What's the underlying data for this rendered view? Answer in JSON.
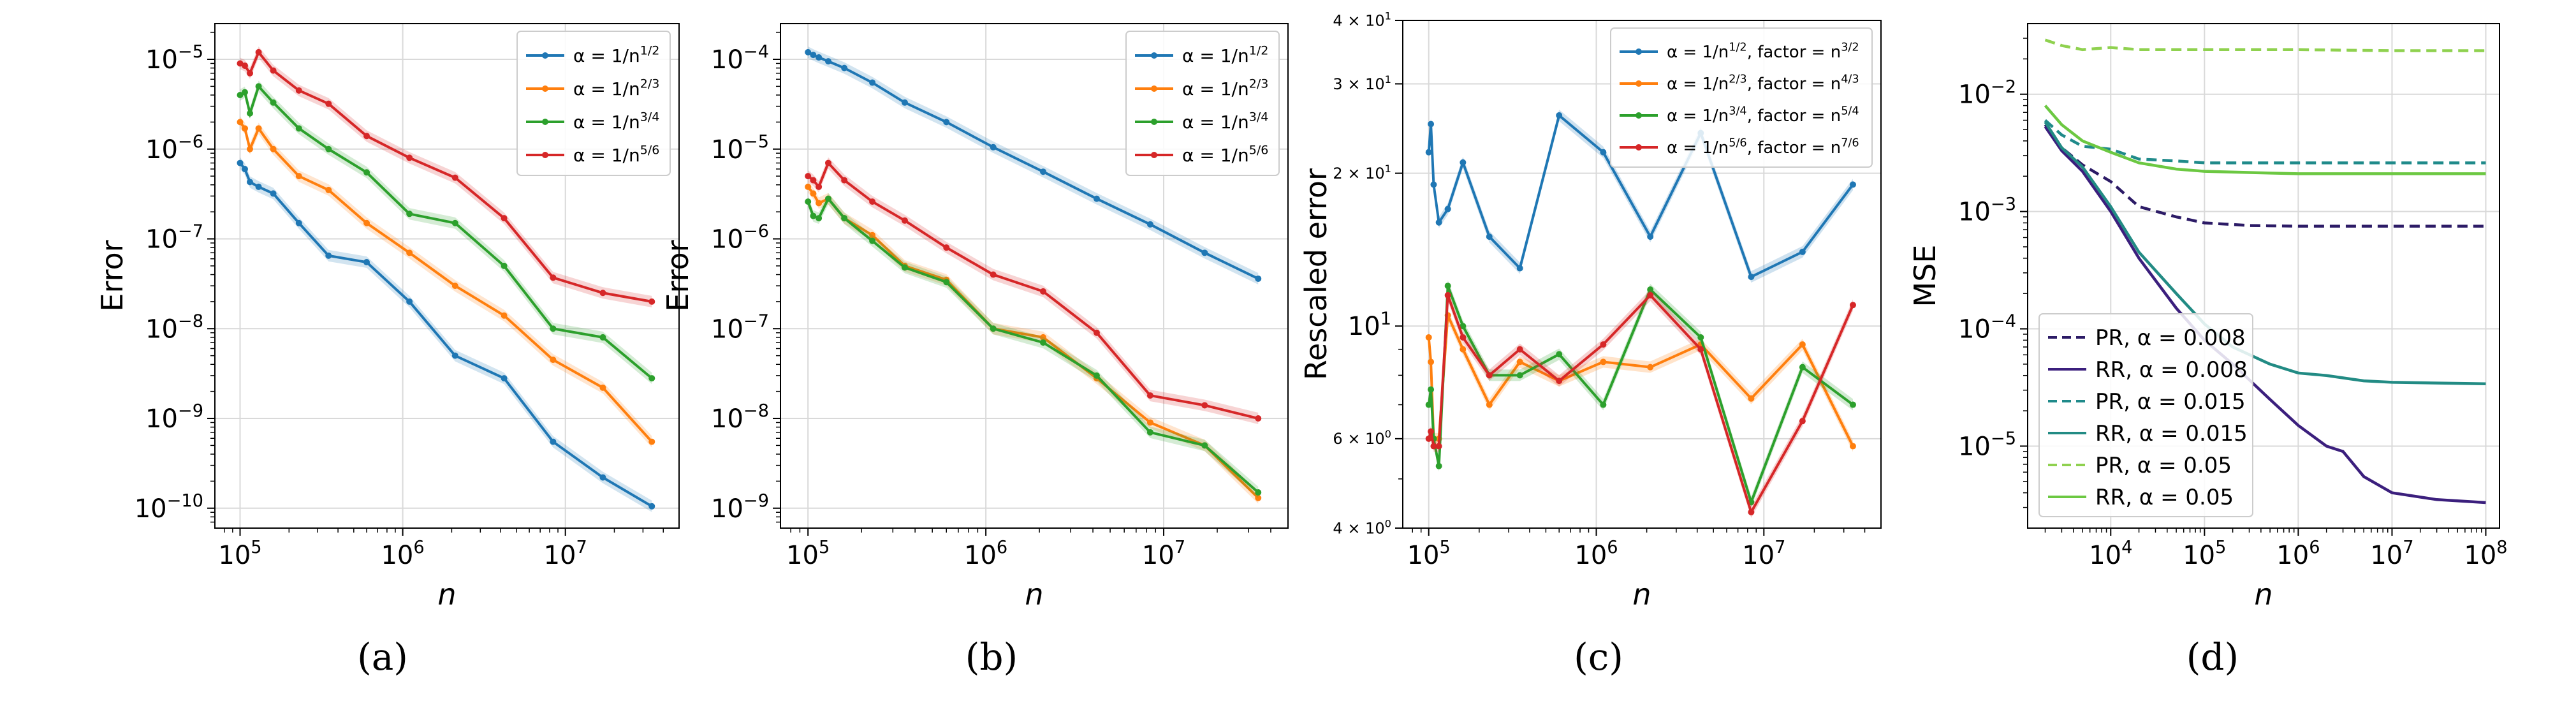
{
  "chart_data": [
    {
      "type": "line",
      "caption": "(a)",
      "xlabel": "n",
      "ylabel": "Error",
      "xscale": "log",
      "yscale": "log",
      "xlim": [
        70000,
        50000000
      ],
      "ylim": [
        6e-11,
        2.5e-05
      ],
      "xticks": [
        {
          "value": 100000,
          "base": "10",
          "exp": "5"
        },
        {
          "value": 1000000,
          "base": "10",
          "exp": "6"
        },
        {
          "value": 10000000,
          "base": "10",
          "exp": "7"
        }
      ],
      "yticks": [
        {
          "value": 1e-10,
          "base": "10",
          "exp": "−10"
        },
        {
          "value": 1e-09,
          "base": "10",
          "exp": "−9"
        },
        {
          "value": 1e-08,
          "base": "10",
          "exp": "−8"
        },
        {
          "value": 1e-07,
          "base": "10",
          "exp": "−7"
        },
        {
          "value": 1e-06,
          "base": "10",
          "exp": "−6"
        },
        {
          "value": 1e-05,
          "base": "10",
          "exp": "−5"
        }
      ],
      "grid": true,
      "legend": "top-right",
      "x": [
        100000,
        107000,
        115000,
        130000,
        160000,
        230000,
        350000,
        600000,
        1100000,
        2100000,
        4200000,
        8400000,
        17000000,
        34000000
      ],
      "series": [
        {
          "name": "α = 1/n^{1/2}",
          "label_main": "α = 1/n",
          "label_sup": "1/2",
          "color": "#1f77b4",
          "values": [
            7e-07,
            6e-07,
            4.3e-07,
            3.8e-07,
            3.2e-07,
            1.5e-07,
            6.5e-08,
            5.5e-08,
            2e-08,
            5e-09,
            2.8e-09,
            5.5e-10,
            2.2e-10,
            1.05e-10
          ]
        },
        {
          "name": "α = 1/n^{2/3}",
          "label_main": "α = 1/n",
          "label_sup": "2/3",
          "color": "#ff7f0e",
          "values": [
            2e-06,
            1.7e-06,
            1e-06,
            1.7e-06,
            1e-06,
            5e-07,
            3.5e-07,
            1.5e-07,
            7e-08,
            3e-08,
            1.4e-08,
            4.5e-09,
            2.2e-09,
            5.5e-10
          ]
        },
        {
          "name": "α = 1/n^{3/4}",
          "label_main": "α = 1/n",
          "label_sup": "3/4",
          "color": "#2ca02c",
          "values": [
            4e-06,
            4.3e-06,
            2.5e-06,
            5e-06,
            3.3e-06,
            1.7e-06,
            1e-06,
            5.5e-07,
            1.9e-07,
            1.5e-07,
            5e-08,
            1e-08,
            8e-09,
            2.8e-09
          ]
        },
        {
          "name": "α = 1/n^{5/6}",
          "label_main": "α = 1/n",
          "label_sup": "5/6",
          "color": "#d62728",
          "values": [
            9e-06,
            8.5e-06,
            7e-06,
            1.2e-05,
            7.5e-06,
            4.5e-06,
            3.2e-06,
            1.4e-06,
            8e-07,
            4.8e-07,
            1.7e-07,
            3.7e-08,
            2.5e-08,
            2e-08
          ]
        }
      ]
    },
    {
      "type": "line",
      "caption": "(b)",
      "xlabel": "n",
      "ylabel": "Error",
      "xscale": "log",
      "yscale": "log",
      "xlim": [
        70000,
        50000000
      ],
      "ylim": [
        6e-10,
        0.00025
      ],
      "xticks": [
        {
          "value": 100000,
          "base": "10",
          "exp": "5"
        },
        {
          "value": 1000000,
          "base": "10",
          "exp": "6"
        },
        {
          "value": 10000000,
          "base": "10",
          "exp": "7"
        }
      ],
      "yticks": [
        {
          "value": 1e-09,
          "base": "10",
          "exp": "−9"
        },
        {
          "value": 1e-08,
          "base": "10",
          "exp": "−8"
        },
        {
          "value": 1e-07,
          "base": "10",
          "exp": "−7"
        },
        {
          "value": 1e-06,
          "base": "10",
          "exp": "−6"
        },
        {
          "value": 1e-05,
          "base": "10",
          "exp": "−5"
        },
        {
          "value": 0.0001,
          "base": "10",
          "exp": "−4"
        }
      ],
      "grid": true,
      "legend": "top-right",
      "x": [
        100000,
        107000,
        115000,
        130000,
        160000,
        230000,
        350000,
        600000,
        1100000,
        2100000,
        4200000,
        8400000,
        17000000,
        34000000
      ],
      "series": [
        {
          "name": "α = 1/n^{1/2}",
          "label_main": "α = 1/n",
          "label_sup": "1/2",
          "color": "#1f77b4",
          "values": [
            0.00012,
            0.000112,
            0.000105,
            9.5e-05,
            8e-05,
            5.5e-05,
            3.3e-05,
            2e-05,
            1.05e-05,
            5.6e-06,
            2.8e-06,
            1.45e-06,
            7e-07,
            3.6e-07
          ]
        },
        {
          "name": "α = 1/n^{2/3}",
          "label_main": "α = 1/n",
          "label_sup": "2/3",
          "color": "#ff7f0e",
          "values": [
            3.8e-06,
            3.2e-06,
            2.5e-06,
            2.8e-06,
            1.7e-06,
            1.1e-06,
            5e-07,
            3.5e-07,
            1e-07,
            8e-08,
            2.8e-08,
            9e-09,
            5e-09,
            1.3e-09
          ]
        },
        {
          "name": "α = 1/n^{3/4}",
          "label_main": "α = 1/n",
          "label_sup": "3/4",
          "color": "#2ca02c",
          "values": [
            2.6e-06,
            1.8e-06,
            1.7e-06,
            2.8e-06,
            1.7e-06,
            9.5e-07,
            4.8e-07,
            3.3e-07,
            1e-07,
            7e-08,
            3e-08,
            7e-09,
            5e-09,
            1.5e-09
          ]
        },
        {
          "name": "α = 1/n^{5/6}",
          "label_main": "α = 1/n",
          "label_sup": "5/6",
          "color": "#d62728",
          "values": [
            5e-06,
            4.5e-06,
            3.8e-06,
            7e-06,
            4.5e-06,
            2.6e-06,
            1.6e-06,
            8e-07,
            4e-07,
            2.6e-07,
            9e-08,
            1.8e-08,
            1.4e-08,
            1e-08
          ]
        }
      ]
    },
    {
      "type": "line",
      "caption": "(c)",
      "xlabel": "n",
      "ylabel": "Rescaled error",
      "xscale": "log",
      "yscale": "log",
      "xlim": [
        70000,
        50000000
      ],
      "ylim": [
        4,
        40
      ],
      "xticks": [
        {
          "value": 100000,
          "base": "10",
          "exp": "5"
        },
        {
          "value": 1000000,
          "base": "10",
          "exp": "6"
        },
        {
          "value": 10000000,
          "base": "10",
          "exp": "7"
        }
      ],
      "yticks": [
        {
          "value": 4,
          "text": "4 × 10",
          "exp": "0",
          "small": true
        },
        {
          "value": 6,
          "text": "6 × 10",
          "exp": "0",
          "small": true
        },
        {
          "value": 10,
          "base": "10",
          "exp": "1",
          "small": false
        },
        {
          "value": 20,
          "text": "2 × 10",
          "exp": "1",
          "small": true
        },
        {
          "value": 30,
          "text": "3 × 10",
          "exp": "1",
          "small": true
        },
        {
          "value": 40,
          "text": "4 × 10",
          "exp": "1",
          "small": true
        }
      ],
      "grid": true,
      "legend": "top-right",
      "x": [
        100000,
        103000,
        107000,
        115000,
        130000,
        160000,
        230000,
        350000,
        600000,
        1100000,
        2100000,
        4200000,
        8400000,
        17000000,
        34000000
      ],
      "series": [
        {
          "name": "α = 1/n^{1/2}, factor = n^{3/2}",
          "label_main": "α = 1/n",
          "label_sup": "1/2",
          "label_mid": ", factor = n",
          "label_sup2": "3/2",
          "color": "#1f77b4",
          "values": [
            22,
            25,
            19,
            16,
            17,
            21,
            15,
            13,
            26,
            22,
            15,
            24,
            12.5,
            14,
            19
          ]
        },
        {
          "name": "α = 1/n^{2/3}, factor = n^{4/3}",
          "label_main": "α = 1/n",
          "label_sup": "2/3",
          "label_mid": ", factor = n",
          "label_sup2": "4/3",
          "color": "#ff7f0e",
          "values": [
            9.5,
            8.5,
            6,
            6,
            10.5,
            9,
            7,
            8.5,
            7.8,
            8.5,
            8.3,
            9.2,
            7.2,
            9.2,
            5.8
          ]
        },
        {
          "name": "α = 1/n^{3/4}, factor = n^{5/4}",
          "label_main": "α = 1/n",
          "label_sup": "3/4",
          "label_mid": ", factor = n",
          "label_sup2": "5/4",
          "color": "#2ca02c",
          "values": [
            7,
            7.5,
            6,
            5.3,
            12,
            10,
            8,
            8,
            8.8,
            7,
            11.8,
            9.5,
            4.5,
            8.3,
            7
          ]
        },
        {
          "name": "α = 1/n^{5/6}, factor = n^{7/6}",
          "label_main": "α = 1/n",
          "label_sup": "5/6",
          "label_mid": ", factor = n",
          "label_sup2": "7/6",
          "color": "#d62728",
          "values": [
            6,
            6.2,
            5.8,
            5.8,
            11.5,
            9.5,
            8,
            9,
            7.8,
            9.2,
            11.5,
            9,
            4.3,
            6.5,
            11
          ]
        }
      ]
    },
    {
      "type": "line",
      "caption": "(d)",
      "xlabel": "n",
      "ylabel": "MSE",
      "xscale": "log",
      "yscale": "log",
      "xlim": [
        1300,
        140000000
      ],
      "ylim": [
        2e-06,
        0.04
      ],
      "xticks": [
        {
          "value": 10000,
          "base": "10",
          "exp": "4"
        },
        {
          "value": 100000,
          "base": "10",
          "exp": "5"
        },
        {
          "value": 1000000,
          "base": "10",
          "exp": "6"
        },
        {
          "value": 10000000,
          "base": "10",
          "exp": "7"
        },
        {
          "value": 100000000,
          "base": "10",
          "exp": "8"
        }
      ],
      "yticks": [
        {
          "value": 1e-05,
          "base": "10",
          "exp": "−5"
        },
        {
          "value": 0.0001,
          "base": "10",
          "exp": "−4"
        },
        {
          "value": 0.001,
          "base": "10",
          "exp": "−3"
        },
        {
          "value": 0.01,
          "base": "10",
          "exp": "−2"
        }
      ],
      "grid": true,
      "legend": "bottom-left",
      "series": [
        {
          "name": "PR, α = 0.008",
          "label_main": "PR, α = 0.008",
          "color": "#2c1b66",
          "dash": true,
          "x": [
            2000,
            3000,
            5000,
            10000,
            20000,
            50000,
            100000,
            300000,
            1000000,
            10000000,
            100000000
          ],
          "values": [
            0.0055,
            0.0035,
            0.0025,
            0.0018,
            0.0011,
            0.0009,
            0.0008,
            0.00076,
            0.00075,
            0.00075,
            0.00075
          ]
        },
        {
          "name": "RR, α = 0.008",
          "label_main": "RR, α = 0.008",
          "color": "#3b1f7d",
          "dash": false,
          "x": [
            2000,
            3000,
            5000,
            10000,
            20000,
            50000,
            100000,
            200000,
            500000,
            1000000,
            2000000,
            3000000,
            5000000,
            10000000,
            30000000,
            100000000
          ],
          "values": [
            0.0053,
            0.0033,
            0.0022,
            0.001,
            0.0004,
            0.00015,
            8e-05,
            5e-05,
            2.5e-05,
            1.5e-05,
            1e-05,
            9e-06,
            5.5e-06,
            4e-06,
            3.5e-06,
            3.3e-06
          ]
        },
        {
          "name": "PR, α = 0.015",
          "label_main": "PR, α = 0.015",
          "color": "#1f8a8a",
          "dash": true,
          "x": [
            2000,
            3000,
            5000,
            10000,
            20000,
            50000,
            100000,
            1000000,
            10000000,
            100000000
          ],
          "values": [
            0.006,
            0.0045,
            0.0036,
            0.0034,
            0.0028,
            0.0027,
            0.0026,
            0.0026,
            0.0026,
            0.0026
          ]
        },
        {
          "name": "RR, α = 0.015",
          "label_main": "RR, α = 0.015",
          "color": "#228b84",
          "dash": false,
          "x": [
            2000,
            3000,
            5000,
            10000,
            20000,
            50000,
            100000,
            200000,
            500000,
            1000000,
            2000000,
            5000000,
            10000000,
            100000000
          ],
          "values": [
            0.0058,
            0.0035,
            0.0024,
            0.0011,
            0.00045,
            0.0002,
            0.00011,
            7e-05,
            5e-05,
            4.2e-05,
            4e-05,
            3.6e-05,
            3.5e-05,
            3.4e-05
          ]
        },
        {
          "name": "PR, α = 0.05",
          "label_main": "PR, α = 0.05",
          "color": "#8fd14f",
          "dash": true,
          "x": [
            2000,
            3000,
            5000,
            10000,
            20000,
            100000,
            1000000,
            10000000,
            100000000
          ],
          "values": [
            0.029,
            0.026,
            0.024,
            0.025,
            0.024,
            0.024,
            0.024,
            0.0235,
            0.0235
          ]
        },
        {
          "name": "RR, α = 0.05",
          "label_main": "RR, α = 0.05",
          "color": "#6cc842",
          "dash": false,
          "x": [
            2000,
            3000,
            5000,
            10000,
            20000,
            50000,
            100000,
            300000,
            1000000,
            10000000,
            100000000
          ],
          "values": [
            0.008,
            0.0055,
            0.004,
            0.0032,
            0.0026,
            0.0023,
            0.0022,
            0.00215,
            0.0021,
            0.0021,
            0.0021
          ]
        }
      ]
    }
  ]
}
